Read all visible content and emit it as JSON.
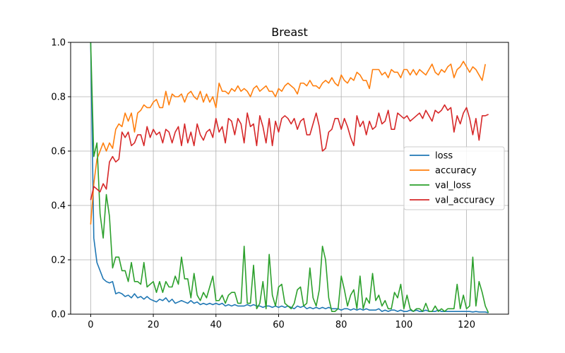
{
  "chart_data": {
    "type": "line",
    "title": "Breast",
    "xlabel": "",
    "ylabel": "",
    "xlim": [
      -6.4,
      133.4
    ],
    "ylim": [
      0,
      1.0
    ],
    "xticks": [
      0,
      20,
      40,
      60,
      80,
      100,
      120
    ],
    "yticks": [
      0.0,
      0.2,
      0.4,
      0.6,
      0.8,
      1.0
    ],
    "grid": true,
    "legend_placement": "center-right",
    "series": [
      {
        "name": "loss",
        "color": "#1f77b4",
        "values": [
          1.0,
          0.28,
          0.19,
          0.16,
          0.13,
          0.12,
          0.115,
          0.12,
          0.075,
          0.08,
          0.075,
          0.065,
          0.07,
          0.06,
          0.075,
          0.06,
          0.065,
          0.055,
          0.065,
          0.055,
          0.05,
          0.045,
          0.055,
          0.05,
          0.06,
          0.045,
          0.055,
          0.04,
          0.045,
          0.05,
          0.045,
          0.04,
          0.05,
          0.04,
          0.045,
          0.035,
          0.04,
          0.035,
          0.04,
          0.035,
          0.04,
          0.035,
          0.04,
          0.03,
          0.035,
          0.03,
          0.035,
          0.03,
          0.03,
          0.03,
          0.035,
          0.03,
          0.035,
          0.03,
          0.03,
          0.025,
          0.03,
          0.03,
          0.025,
          0.03,
          0.025,
          0.03,
          0.025,
          0.03,
          0.025,
          0.02,
          0.03,
          0.025,
          0.03,
          0.02,
          0.025,
          0.02,
          0.025,
          0.02,
          0.025,
          0.02,
          0.025,
          0.02,
          0.02,
          0.02,
          0.015,
          0.02,
          0.02,
          0.015,
          0.02,
          0.015,
          0.02,
          0.015,
          0.02,
          0.015,
          0.015,
          0.015,
          0.02,
          0.01,
          0.015,
          0.01,
          0.015,
          0.015,
          0.01,
          0.015,
          0.01,
          0.01,
          0.015,
          0.01,
          0.015,
          0.01,
          0.01,
          0.015,
          0.01,
          0.01,
          0.01,
          0.015,
          0.01,
          0.01,
          0.01,
          0.01,
          0.01,
          0.01,
          0.01,
          0.01,
          0.01,
          0.01,
          0.008,
          0.01,
          0.008,
          0.008,
          0.008,
          0.005
        ]
      },
      {
        "name": "accuracy",
        "color": "#ff7f0e",
        "values": [
          0.33,
          0.48,
          0.57,
          0.6,
          0.63,
          0.6,
          0.63,
          0.61,
          0.68,
          0.7,
          0.69,
          0.74,
          0.71,
          0.74,
          0.67,
          0.74,
          0.75,
          0.77,
          0.76,
          0.76,
          0.78,
          0.79,
          0.76,
          0.76,
          0.82,
          0.77,
          0.81,
          0.8,
          0.8,
          0.81,
          0.78,
          0.81,
          0.82,
          0.8,
          0.79,
          0.82,
          0.78,
          0.81,
          0.78,
          0.8,
          0.76,
          0.85,
          0.82,
          0.82,
          0.81,
          0.83,
          0.82,
          0.84,
          0.82,
          0.83,
          0.82,
          0.8,
          0.83,
          0.84,
          0.82,
          0.83,
          0.84,
          0.82,
          0.82,
          0.8,
          0.83,
          0.82,
          0.84,
          0.85,
          0.84,
          0.83,
          0.81,
          0.85,
          0.85,
          0.84,
          0.86,
          0.84,
          0.84,
          0.83,
          0.85,
          0.86,
          0.85,
          0.87,
          0.85,
          0.84,
          0.88,
          0.86,
          0.85,
          0.87,
          0.86,
          0.89,
          0.88,
          0.86,
          0.86,
          0.83,
          0.9,
          0.9,
          0.9,
          0.88,
          0.89,
          0.87,
          0.9,
          0.89,
          0.89,
          0.87,
          0.9,
          0.9,
          0.88,
          0.9,
          0.88,
          0.9,
          0.89,
          0.88,
          0.9,
          0.92,
          0.89,
          0.88,
          0.9,
          0.89,
          0.91,
          0.92,
          0.87,
          0.9,
          0.91,
          0.93,
          0.91,
          0.89,
          0.91,
          0.9,
          0.88,
          0.86,
          0.92
        ]
      },
      {
        "name": "val_loss",
        "color": "#2ca02c",
        "values": [
          1.0,
          0.58,
          0.63,
          0.37,
          0.28,
          0.44,
          0.36,
          0.17,
          0.21,
          0.21,
          0.16,
          0.16,
          0.12,
          0.19,
          0.12,
          0.12,
          0.11,
          0.19,
          0.1,
          0.11,
          0.12,
          0.08,
          0.12,
          0.08,
          0.12,
          0.1,
          0.1,
          0.14,
          0.11,
          0.21,
          0.13,
          0.13,
          0.06,
          0.15,
          0.07,
          0.05,
          0.08,
          0.06,
          0.1,
          0.14,
          0.05,
          0.05,
          0.07,
          0.04,
          0.07,
          0.08,
          0.08,
          0.04,
          0.04,
          0.25,
          0.04,
          0.04,
          0.18,
          0.02,
          0.04,
          0.12,
          0.02,
          0.22,
          0.07,
          0.03,
          0.1,
          0.11,
          0.04,
          0.03,
          0.02,
          0.04,
          0.09,
          0.1,
          0.03,
          0.04,
          0.17,
          0.06,
          0.03,
          0.09,
          0.25,
          0.2,
          0.06,
          0.01,
          0.01,
          0.02,
          0.14,
          0.09,
          0.03,
          0.07,
          0.09,
          0.02,
          0.14,
          0.02,
          0.06,
          0.04,
          0.15,
          0.05,
          0.07,
          0.03,
          0.05,
          0.02,
          0.02,
          0.08,
          0.06,
          0.11,
          0.02,
          0.07,
          0.02,
          0.01,
          0.02,
          0.02,
          0.01,
          0.04,
          0.01,
          0.01,
          0.03,
          0.01,
          0.02,
          0.01,
          0.02,
          0.02,
          0.02,
          0.11,
          0.02,
          0.07,
          0.02,
          0.03,
          0.21,
          0.03,
          0.12,
          0.08,
          0.03,
          0.005
        ]
      },
      {
        "name": "val_accuracy",
        "color": "#d62728",
        "values": [
          0.42,
          0.47,
          0.46,
          0.45,
          0.48,
          0.46,
          0.56,
          0.58,
          0.56,
          0.57,
          0.67,
          0.65,
          0.67,
          0.62,
          0.63,
          0.66,
          0.66,
          0.62,
          0.69,
          0.65,
          0.68,
          0.66,
          0.67,
          0.63,
          0.68,
          0.67,
          0.63,
          0.67,
          0.69,
          0.62,
          0.7,
          0.63,
          0.67,
          0.62,
          0.7,
          0.66,
          0.64,
          0.67,
          0.68,
          0.65,
          0.72,
          0.67,
          0.69,
          0.63,
          0.72,
          0.71,
          0.66,
          0.72,
          0.7,
          0.63,
          0.74,
          0.69,
          0.7,
          0.62,
          0.73,
          0.69,
          0.63,
          0.72,
          0.62,
          0.71,
          0.67,
          0.72,
          0.73,
          0.72,
          0.7,
          0.72,
          0.68,
          0.71,
          0.72,
          0.66,
          0.66,
          0.7,
          0.74,
          0.69,
          0.6,
          0.61,
          0.67,
          0.68,
          0.72,
          0.72,
          0.68,
          0.72,
          0.69,
          0.65,
          0.62,
          0.73,
          0.69,
          0.71,
          0.66,
          0.71,
          0.68,
          0.69,
          0.74,
          0.7,
          0.71,
          0.75,
          0.68,
          0.68,
          0.74,
          0.73,
          0.72,
          0.73,
          0.71,
          0.72,
          0.73,
          0.74,
          0.72,
          0.75,
          0.73,
          0.71,
          0.75,
          0.74,
          0.75,
          0.77,
          0.75,
          0.76,
          0.67,
          0.73,
          0.7,
          0.74,
          0.76,
          0.72,
          0.66,
          0.72,
          0.64,
          0.73,
          0.73,
          0.735
        ]
      }
    ]
  }
}
